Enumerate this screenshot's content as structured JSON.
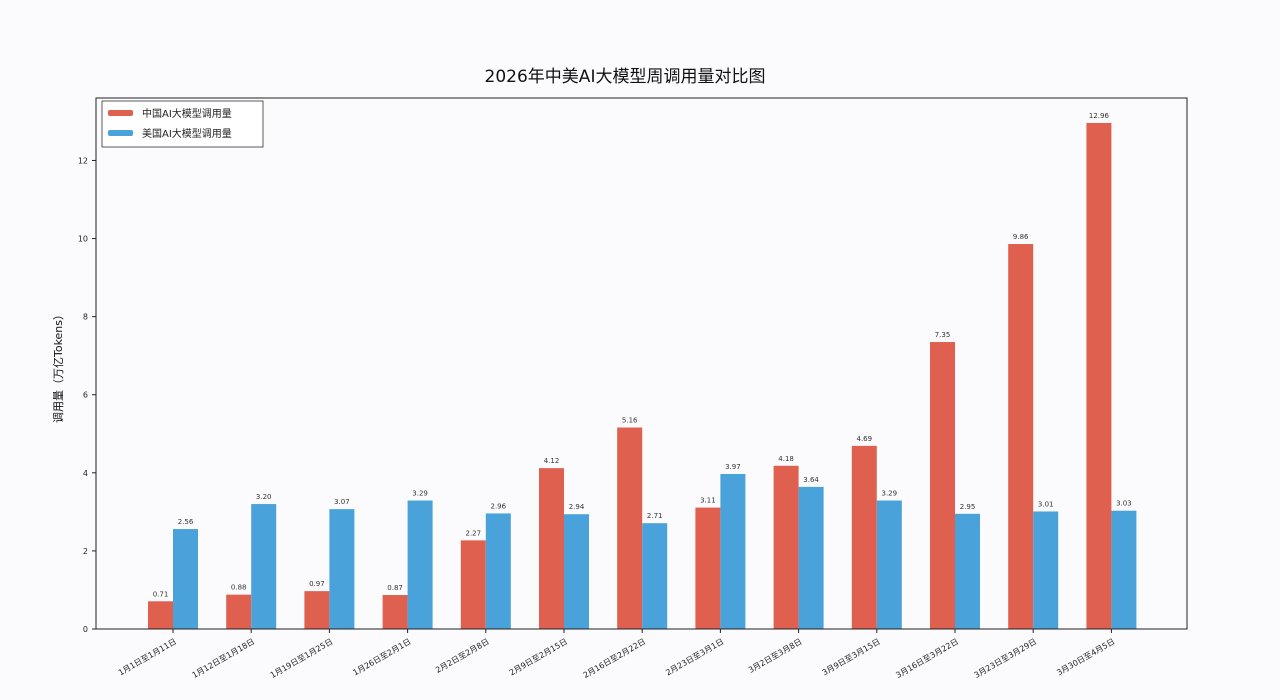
{
  "colors": {
    "china": "#e0604f",
    "usa": "#4aa2da",
    "axis": "#222222",
    "background": "#fbfbfd"
  },
  "chart_data": {
    "type": "bar",
    "title": "2026年中美AI大模型周调用量对比图",
    "ylabel": "调用量（万亿Tokens）",
    "xlabel": "",
    "ylim": [
      0,
      13.6
    ],
    "yticks": [
      0,
      2,
      4,
      6,
      8,
      10,
      12
    ],
    "ytick_labels": [
      "0",
      "2",
      "4",
      "6",
      "8",
      "10",
      "12"
    ],
    "grid": false,
    "legend_position": "top-left",
    "categories": [
      "1月1日至1月11日",
      "1月12日至1月18日",
      "1月19日至1月25日",
      "1月26日至2月1日",
      "2月2日至2月8日",
      "2月9日至2月15日",
      "2月16日至2月22日",
      "2月23日至3月1日",
      "3月2日至3月8日",
      "3月9日至3月15日",
      "3月16日至3月22日",
      "3月23日至3月29日",
      "3月30日至4月5日"
    ],
    "series": [
      {
        "name": "中国AI大模型调用量",
        "color": "#e0604f",
        "values": [
          0.71,
          0.88,
          0.97,
          0.87,
          2.27,
          4.12,
          5.16,
          3.11,
          4.18,
          4.69,
          7.35,
          9.86,
          12.96
        ],
        "labels": [
          "0.71",
          "0.88",
          "0.97",
          "0.87",
          "2.27",
          "4.12",
          "5.16",
          "3.11",
          "4.18",
          "4.69",
          "7.35",
          "9.86",
          "12.96"
        ]
      },
      {
        "name": "美国AI大模型调用量",
        "color": "#4aa2da",
        "values": [
          2.56,
          3.2,
          3.07,
          3.29,
          2.96,
          2.94,
          2.71,
          3.97,
          3.64,
          3.29,
          2.95,
          3.01,
          3.03
        ],
        "labels": [
          "2.56",
          "3.20",
          "3.07",
          "3.29",
          "2.96",
          "2.94",
          "2.71",
          "3.97",
          "3.64",
          "3.29",
          "2.95",
          "3.01",
          "3.03"
        ]
      }
    ]
  }
}
